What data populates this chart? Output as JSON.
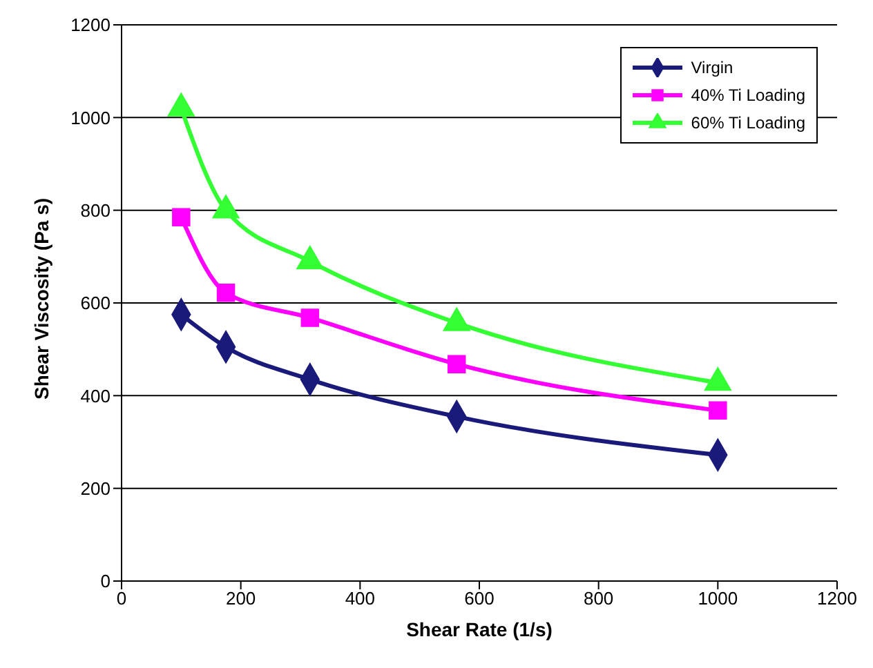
{
  "chart_data": {
    "type": "line",
    "xlabel": "Shear Rate (1/s)",
    "ylabel": "Shear Viscosity (Pa s)",
    "x": [
      100,
      175,
      316,
      562,
      1000
    ],
    "series": [
      {
        "name": "Virgin",
        "color": "#1a1a7a",
        "marker": "diamond",
        "values": [
          575,
          505,
          435,
          355,
          272
        ]
      },
      {
        "name": "40% Ti Loading",
        "color": "#ff00ff",
        "marker": "square",
        "values": [
          785,
          622,
          568,
          468,
          368
        ]
      },
      {
        "name": "60% Ti Loading",
        "color": "#33ff33",
        "marker": "triangle",
        "values": [
          1020,
          800,
          690,
          557,
          428
        ]
      }
    ],
    "xlim": [
      0,
      1200
    ],
    "xticks": [
      0,
      200,
      400,
      600,
      800,
      1000,
      1200
    ],
    "ylim": [
      0,
      1200
    ],
    "yticks": [
      0,
      200,
      400,
      600,
      800,
      1000,
      1200
    ],
    "grid": "y",
    "legend": "top right"
  }
}
